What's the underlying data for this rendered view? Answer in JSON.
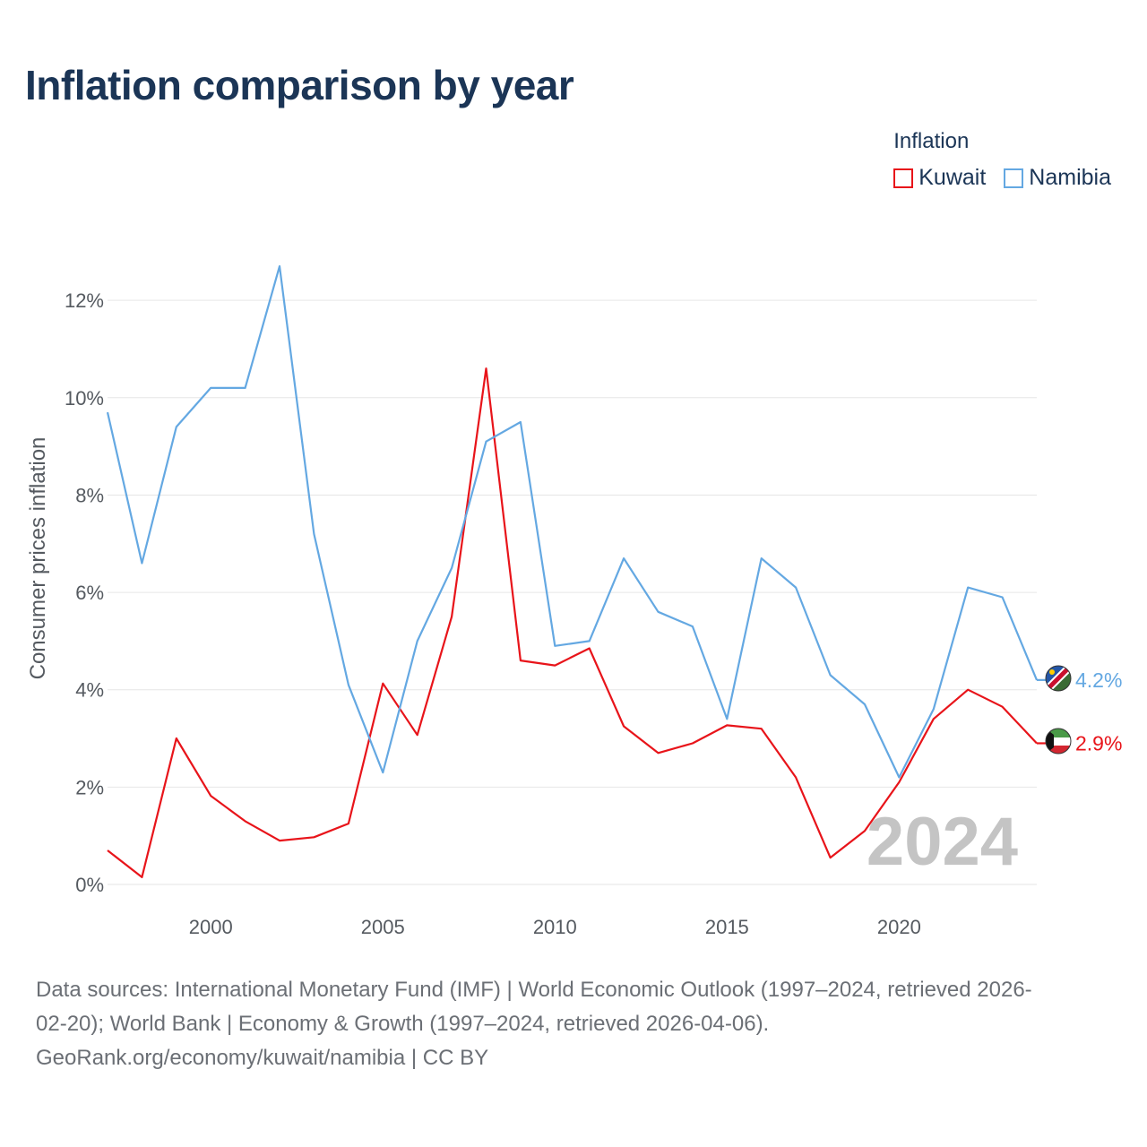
{
  "title": "Inflation comparison by year",
  "legend": {
    "title": "Inflation",
    "items": [
      {
        "label": "Kuwait",
        "color": "#e8141a"
      },
      {
        "label": "Namibia",
        "color": "#64a8e2"
      }
    ]
  },
  "footer": {
    "line1": "Data sources: International Monetary Fund (IMF) | World Economic Outlook (1997–2024, retrieved 2026-",
    "line2": "02-20); World Bank | Economy & Growth (1997–2024, retrieved 2026-04-06).",
    "line3": "GeoRank.org/economy/kuwait/namibia | CC BY"
  },
  "chart_data": {
    "type": "line",
    "title": "Inflation comparison by year",
    "xlabel": "",
    "ylabel": "Consumer prices inflation",
    "x": [
      1997,
      1998,
      1999,
      2000,
      2001,
      2002,
      2003,
      2004,
      2005,
      2006,
      2007,
      2008,
      2009,
      2010,
      2011,
      2012,
      2013,
      2014,
      2015,
      2016,
      2017,
      2018,
      2019,
      2020,
      2021,
      2022,
      2023,
      2024
    ],
    "xlim": [
      1997,
      2024
    ],
    "ylim": [
      0,
      12.5
    ],
    "xticks": [
      2000,
      2005,
      2010,
      2015,
      2020
    ],
    "xtick_labels": [
      "2000",
      "2005",
      "2010",
      "2015",
      "2020"
    ],
    "yticks": [
      0,
      2,
      4,
      6,
      8,
      10,
      12
    ],
    "ytick_labels": [
      "0%",
      "2%",
      "4%",
      "6%",
      "8%",
      "10%",
      "12%"
    ],
    "grid": true,
    "year_watermark": "2024",
    "series": [
      {
        "name": "Kuwait",
        "color": "#e8141a",
        "end_label": "2.9%",
        "values": [
          0.7,
          0.15,
          3.0,
          1.82,
          1.3,
          0.9,
          0.97,
          1.25,
          4.13,
          3.07,
          5.5,
          10.6,
          4.6,
          4.5,
          4.85,
          3.25,
          2.7,
          2.9,
          3.27,
          3.2,
          2.2,
          0.55,
          1.1,
          2.1,
          3.4,
          4.0,
          3.65,
          2.9
        ]
      },
      {
        "name": "Namibia",
        "color": "#64a8e2",
        "end_label": "4.2%",
        "values": [
          9.7,
          6.6,
          9.4,
          10.2,
          10.2,
          12.7,
          7.2,
          4.1,
          2.3,
          5.0,
          6.5,
          9.1,
          9.5,
          4.9,
          5.0,
          6.7,
          5.6,
          5.3,
          3.4,
          6.7,
          6.1,
          4.3,
          3.7,
          2.2,
          3.6,
          6.1,
          5.9,
          4.2
        ]
      }
    ]
  }
}
